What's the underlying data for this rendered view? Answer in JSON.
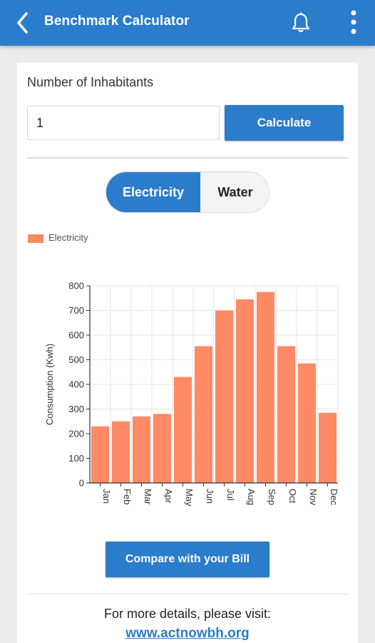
{
  "appbar": {
    "title": "Benchmark Calculator",
    "back_icon": "chevron-left-icon",
    "notification_icon": "bell-icon",
    "menu_icon": "more-vertical-icon",
    "color": "#2b7ccb"
  },
  "form": {
    "inhabitants_label": "Number of Inhabitants",
    "inhabitants_value": "1",
    "calculate_label": "Calculate"
  },
  "toggle": {
    "options": [
      "Electricity",
      "Water"
    ],
    "selected": "Electricity"
  },
  "chart_data": {
    "type": "bar",
    "categories": [
      "Jan",
      "Feb",
      "Mar",
      "Apr",
      "May",
      "Jun",
      "Jul",
      "Aug",
      "Sep",
      "Oct",
      "Nov",
      "Dec"
    ],
    "series": [
      {
        "name": "Electricity",
        "values": [
          230,
          250,
          270,
          280,
          430,
          555,
          700,
          745,
          775,
          555,
          485,
          285
        ]
      }
    ],
    "ylabel": "Consumption (Kwh)",
    "xlabel": "",
    "ylim": [
      0,
      800
    ],
    "yticks": [
      0,
      100,
      200,
      300,
      400,
      500,
      600,
      700,
      800
    ],
    "grid": true,
    "legend_position": "top-left",
    "bar_color": "#ff8a65"
  },
  "actions": {
    "compare_label": "Compare with your Bill"
  },
  "footer": {
    "details_text": "For more details, please visit:",
    "link_text": "www.actnowbh.org"
  }
}
